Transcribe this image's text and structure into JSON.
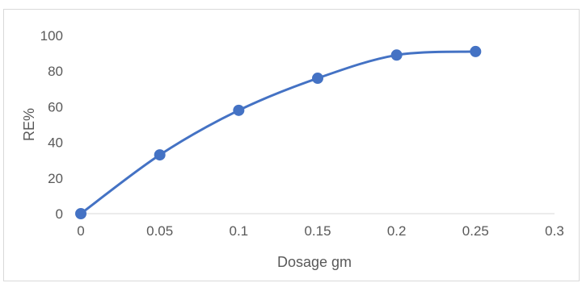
{
  "chart_data": {
    "type": "line",
    "smooth": true,
    "title": "",
    "xlabel": "Dosage gm",
    "ylabel": "RE%",
    "xlim": [
      0,
      0.3
    ],
    "ylim": [
      0,
      100
    ],
    "xticks": [
      "0",
      "0.05",
      "0.1",
      "0.15",
      "0.2",
      "0.25",
      "0.3"
    ],
    "yticks": [
      "0",
      "20",
      "40",
      "60",
      "80",
      "100"
    ],
    "grid": false,
    "legend": "none",
    "series": [
      {
        "x": [
          0,
          0.05,
          0.1,
          0.15,
          0.2,
          0.25
        ],
        "y": [
          0,
          33,
          58,
          76,
          89,
          91
        ],
        "color": "#4472c4"
      }
    ]
  }
}
